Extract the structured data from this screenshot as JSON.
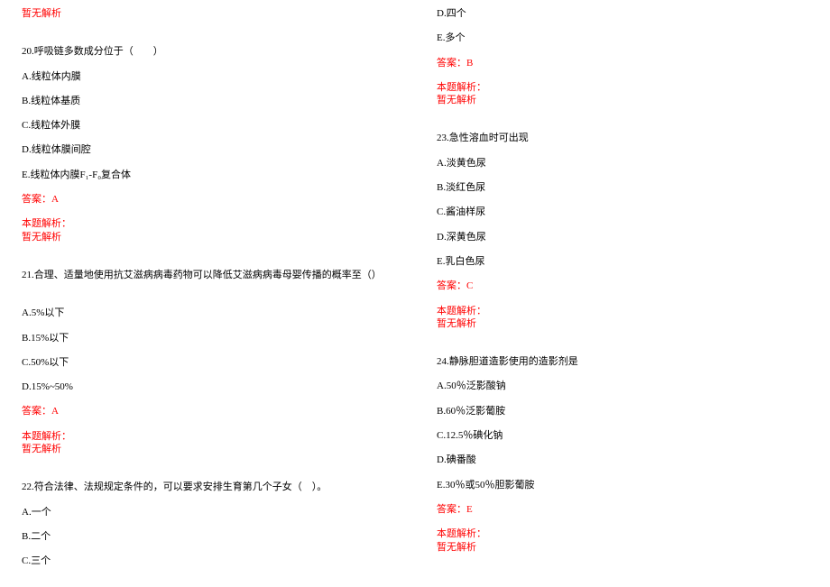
{
  "col1": {
    "noanalysis_top": "暂无解析",
    "q20": {
      "stem": "20.呼吸链多数成分位于（　　）",
      "a": "A.线粒体内膜",
      "b": "B.线粒体基质",
      "c": "C.线粒体外膜",
      "d": "D.线粒体膜间腔",
      "e": "E.线粒体内膜F₁-F₀复合体",
      "ans": "答案：A",
      "label": "本题解析：",
      "none": "暂无解析"
    },
    "q21": {
      "stem": "21.合理、适量地使用抗艾滋病病毒药物可以降低艾滋病病毒母婴传播的概率至（）",
      "a": "A.5%以下",
      "b": "B.15%以下",
      "c": "C.50%以下",
      "d": "D.15%~50%",
      "ans": "答案：A",
      "label": "本题解析：",
      "none": "暂无解析"
    },
    "q22": {
      "stem": "22.符合法律、法规规定条件的，可以要求安排生育第几个子女（　）。",
      "a": "A.一个",
      "b": "B.二个",
      "c": "C.三个"
    }
  },
  "col2": {
    "q22cont": {
      "d": "D.四个",
      "e": "E.多个",
      "ans": "答案：B",
      "label": "本题解析：",
      "none": "暂无解析"
    },
    "q23": {
      "stem": "23.急性溶血时可出现",
      "a": "A.淡黄色尿",
      "b": "B.淡红色尿",
      "c": "C.酱油样尿",
      "d": "D.深黄色尿",
      "e": "E.乳白色尿",
      "ans": "答案：C",
      "label": "本题解析：",
      "none": "暂无解析"
    },
    "q24": {
      "stem": "24.静脉胆道造影使用的造影剂是",
      "a": "A.50％泛影酸钠",
      "b": "B.60％泛影葡胺",
      "c": "C.12.5％碘化钠",
      "d": "D.碘番酸",
      "e": "E.30％或50％胆影葡胺",
      "ans": "答案：E",
      "label": "本题解析：",
      "none": "暂无解析"
    }
  }
}
